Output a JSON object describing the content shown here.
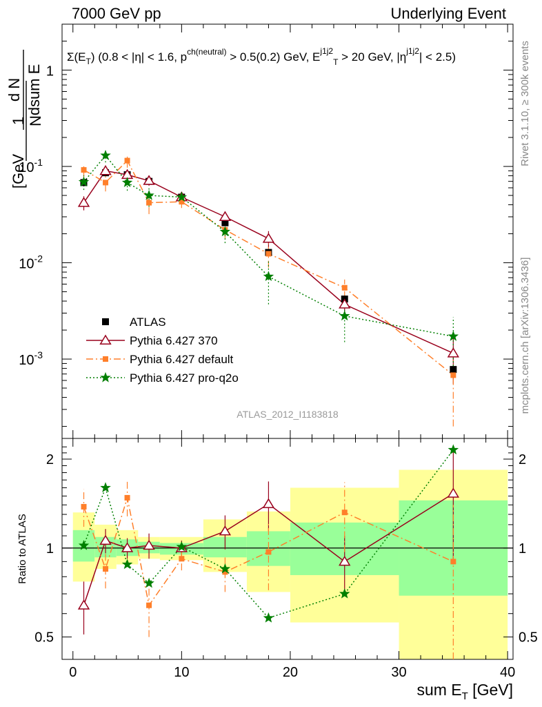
{
  "header": {
    "left": "7000 GeV pp",
    "right": "Underlying Event"
  },
  "side_labels": {
    "rivet": "Rivet 3.1.10, ≥ 300k events",
    "mcplots": "mcplots.cern.ch [arXiv:1306.3436]"
  },
  "watermark": "ATLAS_2012_I1183818",
  "legend": {
    "atlas": "ATLAS",
    "p370": "Pythia 6.427 370",
    "pdefault": "Pythia 6.427 default",
    "pq2o": "Pythia 6.427 pro-q2o"
  },
  "colors": {
    "p370": "#99001c",
    "pdefault": "#ff7f2a",
    "pq2o": "#007f00",
    "band_inner": "#99ff99",
    "band_outer": "#ffff99"
  },
  "chart_data": [
    {
      "type": "scatter",
      "panel": "main",
      "title": "Σ(E_T) (0.8 < |η| < 1.6, p^{ch(neutral)} > 0.5(0.2) GeV, E_T^{j1j2} > 20 GeV, |η^{j1j2}| < 2.5)",
      "ylabel": "1/N_evt dN_evt/dsum E_T [GeV^-1]",
      "xlim": [
        -1,
        40.5
      ],
      "ylim": [
        0.00015,
        3.0
      ],
      "yscale": "log",
      "y_ticks": [
        "10^-3",
        "10^-2",
        "10^-1",
        "1"
      ],
      "series": [
        {
          "name": "ATLAS",
          "x": [
            1,
            3,
            5,
            7,
            10,
            14,
            18,
            25,
            35
          ],
          "y": [
            0.068,
            0.086,
            0.082,
            0.07,
            0.048,
            0.026,
            0.0128,
            0.0042,
            0.00078
          ],
          "xerr": [
            1,
            1,
            1,
            1,
            2,
            2,
            2,
            5,
            5
          ]
        },
        {
          "name": "Pythia 6.427 370",
          "x": [
            1,
            3,
            5,
            7,
            10,
            14,
            18,
            25,
            35
          ],
          "y": [
            0.042,
            0.09,
            0.082,
            0.071,
            0.048,
            0.03,
            0.0178,
            0.0037,
            0.00115
          ],
          "yerr": [
            0.007,
            0.01,
            0.009,
            0.008,
            0.005,
            0.004,
            0.0035,
            0.0009,
            0.0006
          ]
        },
        {
          "name": "Pythia 6.427 default",
          "x": [
            1,
            3,
            5,
            7,
            10,
            14,
            18,
            25,
            35
          ],
          "y": [
            0.092,
            0.068,
            0.115,
            0.042,
            0.043,
            0.022,
            0.0124,
            0.0055,
            0.00068
          ],
          "yerr": [
            0.015,
            0.013,
            0.018,
            0.01,
            0.006,
            0.004,
            0.0035,
            0.0012,
            0.00048
          ]
        },
        {
          "name": "Pythia 6.427 pro-q2o",
          "x": [
            1,
            3,
            5,
            7,
            10,
            14,
            18,
            25,
            35
          ],
          "y": [
            0.069,
            0.13,
            0.068,
            0.05,
            0.048,
            0.021,
            0.0072,
            0.0028,
            0.00172
          ],
          "yerr": [
            0.012,
            0.02,
            0.012,
            0.012,
            0.007,
            0.005,
            0.0035,
            0.0013,
            0.001
          ]
        }
      ]
    },
    {
      "type": "scatter",
      "panel": "ratio",
      "ylabel": "Ratio to ATLAS",
      "xlabel": "sum E_T [GeV]",
      "xlim": [
        -1,
        40.5
      ],
      "ylim": [
        0.42,
        2.35
      ],
      "yscale": "log",
      "x_ticks": [
        0,
        10,
        20,
        30,
        40
      ],
      "y_ticks": [
        0.5,
        1,
        2
      ],
      "bands": {
        "edges": [
          0,
          2,
          4,
          6,
          8,
          12,
          16,
          20,
          30,
          40
        ],
        "inner": [
          [
            0.9,
            1.15
          ],
          [
            0.93,
            1.09
          ],
          [
            0.94,
            1.07
          ],
          [
            0.96,
            1.05
          ],
          [
            0.95,
            1.04
          ],
          [
            0.93,
            1.09
          ],
          [
            0.87,
            1.14
          ],
          [
            0.81,
            1.22
          ],
          [
            0.69,
            1.45
          ]
        ],
        "outer": [
          [
            0.77,
            1.32
          ],
          [
            0.85,
            1.2
          ],
          [
            0.88,
            1.15
          ],
          [
            0.92,
            1.09
          ],
          [
            0.91,
            1.09
          ],
          [
            0.83,
            1.25
          ],
          [
            0.71,
            1.33
          ],
          [
            0.56,
            1.6
          ],
          [
            0.34,
            1.84
          ]
        ]
      },
      "series": [
        {
          "name": "Pythia 6.427 370",
          "x": [
            1,
            3,
            5,
            7,
            10,
            14,
            18,
            25,
            35
          ],
          "y": [
            0.64,
            1.06,
            1.0,
            1.02,
            1.0,
            1.14,
            1.41,
            0.9,
            1.53
          ],
          "yerr": [
            0.13,
            0.1,
            0.08,
            0.1,
            0.06,
            0.15,
            0.27,
            0.2,
            0.65
          ]
        },
        {
          "name": "Pythia 6.427 default",
          "x": [
            1,
            3,
            5,
            7,
            10,
            14,
            18,
            25,
            35
          ],
          "y": [
            1.38,
            0.85,
            1.48,
            0.64,
            0.92,
            0.83,
            0.97,
            1.32,
            0.9
          ],
          "yerr": [
            0.2,
            0.12,
            0.2,
            0.14,
            0.08,
            0.12,
            0.25,
            0.35,
            0.5
          ]
        },
        {
          "name": "Pythia 6.427 pro-q2o",
          "x": [
            1,
            3,
            5,
            7,
            10,
            14,
            18,
            25,
            35
          ],
          "y": [
            1.02,
            1.6,
            0.88,
            0.76,
            1.01,
            0.85,
            0.58,
            0.7,
            2.15
          ]
        }
      ]
    }
  ]
}
